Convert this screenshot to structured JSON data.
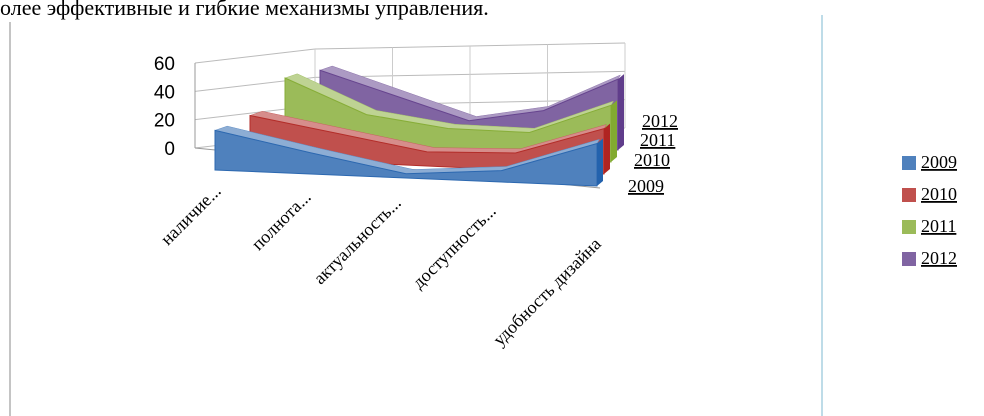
{
  "document_text": "олее эффективные и гибкие механизмы управления.",
  "chart_data": {
    "type": "area3d",
    "categories": [
      "наличие...",
      "полнота...",
      "актуальность...",
      "доступность...",
      "удобность дизайна"
    ],
    "series": [
      {
        "name": "2009",
        "color": "#4f81bd",
        "values": [
          28,
          15,
          3,
          8,
          30
        ]
      },
      {
        "name": "2010",
        "color": "#c0504d",
        "values": [
          30,
          20,
          10,
          12,
          32
        ]
      },
      {
        "name": "2011",
        "color": "#9bbb59",
        "values": [
          48,
          25,
          18,
          18,
          40
        ]
      },
      {
        "name": "2012",
        "color": "#8064a2",
        "values": [
          45,
          30,
          15,
          25,
          50
        ]
      }
    ],
    "ylim": [
      0,
      60
    ],
    "yticks": [
      0,
      20,
      40,
      60
    ],
    "grid": true,
    "legend": "right"
  }
}
